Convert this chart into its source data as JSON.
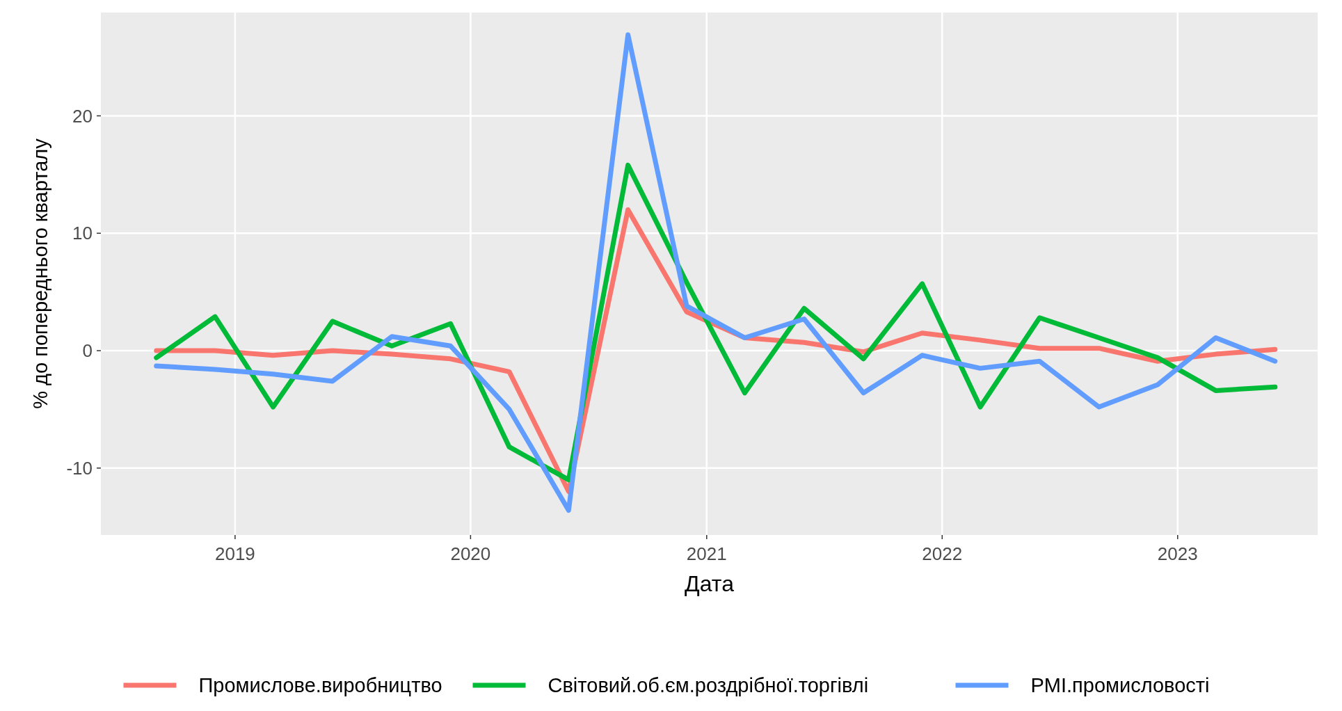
{
  "chart_data": {
    "type": "line",
    "xlabel": "Дата",
    "ylabel": "% до попереднього кварталу",
    "x": [
      "2018-09-01",
      "2018-12-01",
      "2019-03-01",
      "2019-06-01",
      "2019-09-01",
      "2019-12-01",
      "2020-03-01",
      "2020-06-01",
      "2020-09-01",
      "2020-12-01",
      "2021-03-01",
      "2021-06-01",
      "2021-09-01",
      "2021-12-01",
      "2022-03-01",
      "2022-06-01",
      "2022-09-01",
      "2022-12-01",
      "2023-03-01",
      "2023-06-01"
    ],
    "series": [
      {
        "name": "Промислове.виробництво",
        "color": "#f8766d",
        "values": [
          0,
          0,
          -0.4,
          0,
          -0.3,
          -0.7,
          -1.8,
          -12,
          12,
          3.3,
          1.1,
          0.7,
          -0.1,
          1.5,
          0.9,
          0.2,
          0.2,
          -0.9,
          -0.3,
          0.1
        ]
      },
      {
        "name": "Світовий.об.єм.роздрібної.торгівлі",
        "color": "#00ba38",
        "values": [
          -0.6,
          2.9,
          -4.8,
          2.5,
          0.4,
          2.3,
          -8.2,
          -11,
          15.8,
          5.8,
          -3.6,
          3.6,
          -0.7,
          5.7,
          -4.8,
          2.8,
          1.1,
          -0.6,
          -3.4,
          -3.1
        ]
      },
      {
        "name": "PMI.промисловості",
        "color": "#619cff",
        "values": [
          -1.3,
          -1.6,
          -2,
          -2.6,
          1.2,
          0.4,
          -5,
          -13.6,
          26.9,
          3.8,
          1.1,
          2.7,
          -3.6,
          -0.4,
          -1.5,
          -0.9,
          -4.8,
          -2.9,
          1.1,
          -0.9
        ]
      }
    ],
    "xlim": [
      "2018-06-07",
      "2023-08-06"
    ],
    "xticks": [
      {
        "value": "2019-01-01",
        "label": "2019"
      },
      {
        "value": "2020-01-01",
        "label": "2020"
      },
      {
        "value": "2021-01-01",
        "label": "2021"
      },
      {
        "value": "2022-01-01",
        "label": "2022"
      },
      {
        "value": "2023-01-01",
        "label": "2023"
      }
    ],
    "ylim": [
      -15.7,
      28.8
    ],
    "yticks": [
      -10,
      0,
      10,
      20
    ],
    "grid": true,
    "legend": "bottom",
    "line_style": "solid"
  }
}
